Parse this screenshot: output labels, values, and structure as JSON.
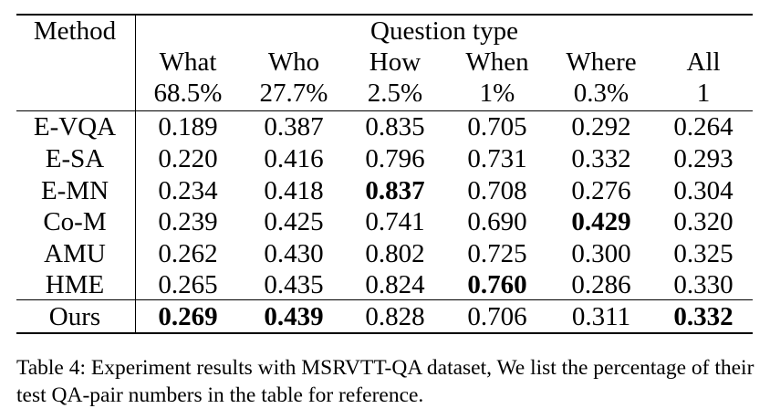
{
  "table": {
    "method_header": "Method",
    "group_header": "Question type",
    "columns": [
      {
        "label": "What",
        "share": "68.5%"
      },
      {
        "label": "Who",
        "share": "27.7%"
      },
      {
        "label": "How",
        "share": "2.5%"
      },
      {
        "label": "When",
        "share": "1%"
      },
      {
        "label": "Where",
        "share": "0.3%"
      },
      {
        "label": "All",
        "share": "1"
      }
    ],
    "rows": [
      {
        "method": "E-VQA",
        "values": [
          "0.189",
          "0.387",
          "0.835",
          "0.705",
          "0.292",
          "0.264"
        ],
        "bold": []
      },
      {
        "method": "E-SA",
        "values": [
          "0.220",
          "0.416",
          "0.796",
          "0.731",
          "0.332",
          "0.293"
        ],
        "bold": []
      },
      {
        "method": "E-MN",
        "values": [
          "0.234",
          "0.418",
          "0.837",
          "0.708",
          "0.276",
          "0.304"
        ],
        "bold": [
          2
        ]
      },
      {
        "method": "Co-M",
        "values": [
          "0.239",
          "0.425",
          "0.741",
          "0.690",
          "0.429",
          "0.320"
        ],
        "bold": [
          4
        ]
      },
      {
        "method": "AMU",
        "values": [
          "0.262",
          "0.430",
          "0.802",
          "0.725",
          "0.300",
          "0.325"
        ],
        "bold": []
      },
      {
        "method": "HME",
        "values": [
          "0.265",
          "0.435",
          "0.824",
          "0.760",
          "0.286",
          "0.330"
        ],
        "bold": [
          3
        ]
      },
      {
        "method": "Ours",
        "values": [
          "0.269",
          "0.439",
          "0.828",
          "0.706",
          "0.311",
          "0.332"
        ],
        "bold": [
          0,
          1,
          5
        ]
      }
    ]
  },
  "caption": "Table 4:  Experiment results with MSRVTT-QA dataset, We list the percentage of their test QA-pair numbers in the table for reference."
}
